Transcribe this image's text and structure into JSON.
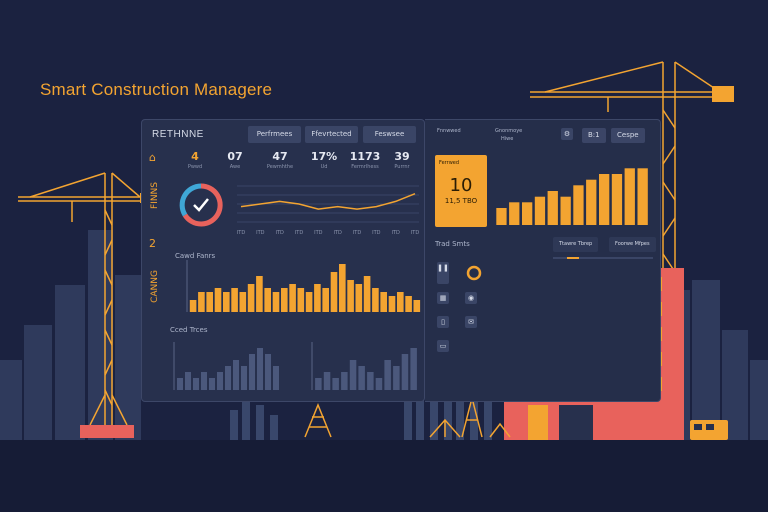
{
  "app": {
    "title": "Smart Construction Managere"
  },
  "colors": {
    "background": "#1b2240",
    "accent": "#f3a431",
    "panel": "#27304d",
    "building": "#e8625c"
  },
  "main_panel": {
    "title": "RETHNNE",
    "tabs": [
      {
        "label": "Perfrmees"
      },
      {
        "label": "Ffevrtected"
      },
      {
        "label": "Feswsee"
      }
    ],
    "sidebar": {
      "icon": "home-icon",
      "labels": [
        "FINNS",
        "2",
        "CANNG"
      ]
    },
    "stats": [
      {
        "value": "4",
        "label": "Pwwd"
      },
      {
        "value": "07",
        "label": "Awe"
      },
      {
        "value": "47",
        "label": "Pewmhthe"
      },
      {
        "value": "17%",
        "label": "Ud"
      },
      {
        "value": "1173",
        "label": "Fermrlhess"
      },
      {
        "value": "39",
        "label": "Purrnr"
      }
    ],
    "gauge": {
      "icon": "check-icon"
    },
    "section_labels": {
      "bar_chart": "Cawd Fanrs",
      "lower_charts": "Cced Trces"
    }
  },
  "right_panel": {
    "header": {
      "label_a": "Fnnwwed",
      "label_b": "Gnonmoye",
      "label_c": "Hiwe",
      "icon": "settings-icon",
      "button_1": "B:1",
      "button_2": "Cespe"
    },
    "kpi": {
      "caption": "Ferrwed",
      "value": "10",
      "sub": "11,5 TBO"
    },
    "section_label": "Trad Smts",
    "pill_1": "Ttawre Tbrep",
    "pill_2": "Foorwe Mfpes",
    "side_icons": [
      "pause-icon",
      "ring-icon",
      "grid-icon",
      "user-icon",
      "device-icon",
      "chat-icon"
    ]
  },
  "chart_data": [
    {
      "type": "line",
      "title": "",
      "x": [
        "ITD",
        "ITD",
        "ITD",
        "ITD",
        "ITD",
        "ITD",
        "ITD",
        "ITD",
        "ITD",
        "ITD"
      ],
      "series": [
        {
          "values": [
            6,
            7,
            8,
            7,
            5,
            6,
            5,
            6,
            8,
            11
          ]
        }
      ],
      "ylim": [
        0,
        14
      ]
    },
    {
      "type": "bar",
      "title": "Cawd Fanrs",
      "values": [
        3,
        5,
        5,
        6,
        5,
        6,
        5,
        7,
        9,
        6,
        5,
        6,
        7,
        6,
        5,
        7,
        6,
        10,
        12,
        8,
        7,
        9,
        6,
        5,
        4,
        5,
        4,
        3
      ],
      "ylim": [
        0,
        13
      ]
    },
    {
      "type": "bar",
      "title": "Cced Trces",
      "values": [
        2,
        3,
        2,
        3,
        2,
        3,
        4,
        5,
        4,
        6,
        7,
        6,
        4
      ],
      "ylim": [
        0,
        8
      ]
    },
    {
      "type": "bar",
      "title": "",
      "values": [
        2,
        3,
        2,
        3,
        5,
        4,
        3,
        2,
        5,
        4,
        6,
        7
      ],
      "ylim": [
        0,
        8
      ]
    },
    {
      "type": "bar",
      "title": "",
      "values": [
        3,
        4,
        4,
        5,
        6,
        5,
        7,
        8,
        9,
        9,
        10,
        10
      ],
      "ylim": [
        0,
        12
      ]
    }
  ]
}
